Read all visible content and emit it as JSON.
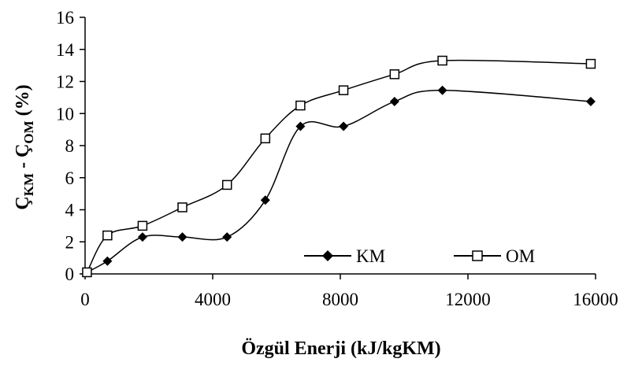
{
  "chart_data": {
    "type": "line",
    "xlabel": "Özgül Enerji (kJ/kgKM)",
    "ylabel": "ÇKM - ÇOM (%)",
    "xlim": [
      0,
      16000
    ],
    "ylim": [
      0,
      16
    ],
    "xticks": [
      "0",
      "4000",
      "8000",
      "12000",
      "16000"
    ],
    "yticks": [
      "0",
      "2",
      "4",
      "6",
      "8",
      "10",
      "12",
      "14",
      "16"
    ],
    "grid": false,
    "legend": "inside bottom-right",
    "series": [
      {
        "name": "KM",
        "marker": "diamond-filled",
        "color": "#000000",
        "x": [
          60,
          700,
          1800,
          3050,
          4450,
          5650,
          6750,
          8100,
          9700,
          11200,
          15850
        ],
        "y": [
          0.1,
          0.8,
          2.3,
          2.3,
          2.3,
          4.6,
          9.2,
          9.2,
          10.75,
          11.45,
          10.75
        ]
      },
      {
        "name": "OM",
        "marker": "square-open",
        "color": "#000000",
        "x": [
          60,
          700,
          1800,
          3050,
          4450,
          5650,
          6750,
          8100,
          9700,
          11200,
          15850
        ],
        "y": [
          0.1,
          2.4,
          3.0,
          4.15,
          5.55,
          8.45,
          10.5,
          11.45,
          12.45,
          13.3,
          13.1
        ]
      }
    ]
  }
}
